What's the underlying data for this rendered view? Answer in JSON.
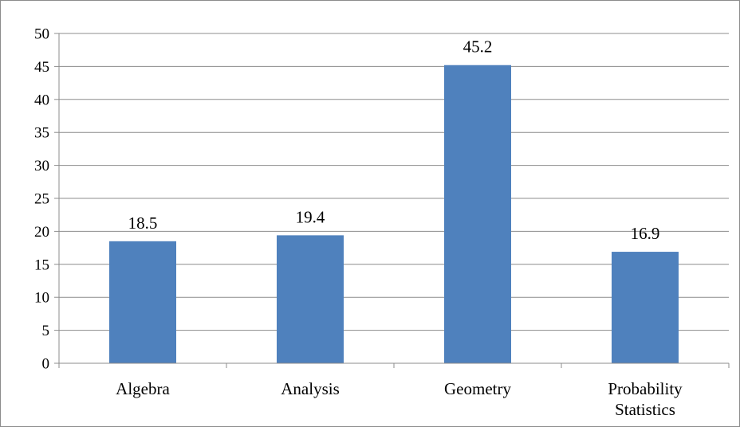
{
  "chart_data": {
    "type": "bar",
    "title": "",
    "xlabel": "",
    "ylabel": "",
    "categories": [
      [
        "Algebra"
      ],
      [
        "Analysis"
      ],
      [
        "Geometry"
      ],
      [
        "Probability",
        "Statistics"
      ]
    ],
    "values": [
      18.5,
      19.4,
      45.2,
      16.9
    ],
    "data_labels": [
      "18.5",
      "19.4",
      "45.2",
      "16.9"
    ],
    "ylim": [
      0,
      50
    ],
    "y_ticks": [
      0,
      5,
      10,
      15,
      20,
      25,
      30,
      35,
      40,
      45,
      50
    ],
    "grid": true,
    "legend": "none",
    "colors": {
      "bar": "#4f81bd",
      "grid": "#8c8c8c",
      "axis": "#8c8c8c",
      "text": "#000000"
    }
  }
}
